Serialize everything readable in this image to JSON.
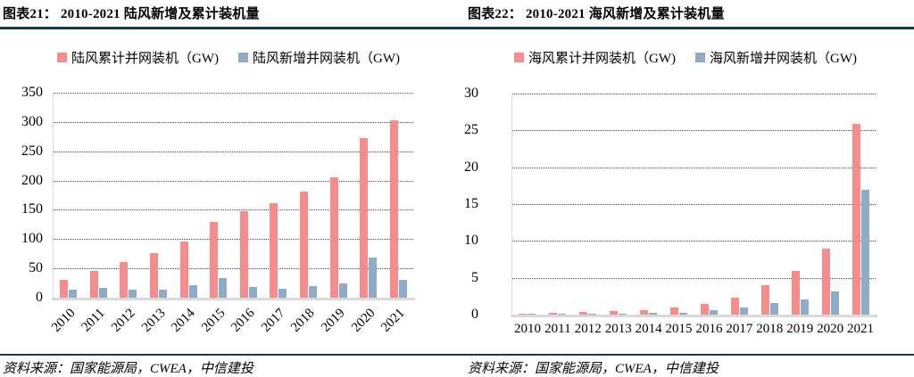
{
  "page": {
    "background": "#FFFFFF"
  },
  "rules": {
    "color": "#17375E"
  },
  "grid": {
    "line_color": "#4A4A4A",
    "baseline_color": "#D9D9D9"
  },
  "chart_data": [
    {
      "type": "bar",
      "title": "图表21： 2010-2021 陆风新增及累计装机量",
      "categories": [
        "2010",
        "2011",
        "2012",
        "2013",
        "2014",
        "2015",
        "2016",
        "2017",
        "2018",
        "2019",
        "2020",
        "2021"
      ],
      "series": [
        {
          "name": "陆风累计并网装机（GW)",
          "color": "#F68C8C",
          "values": [
            30,
            46,
            61,
            76,
            96,
            129,
            147,
            162,
            181,
            206,
            272,
            303
          ]
        },
        {
          "name": "陆风新增并网装机（GW)",
          "color": "#8DACC7",
          "values": [
            13,
            16,
            14,
            14,
            21,
            33,
            19,
            15,
            20,
            25,
            69,
            30
          ]
        }
      ],
      "ylim": [
        0,
        350
      ],
      "yticks": [
        0,
        50,
        100,
        150,
        200,
        250,
        300,
        350
      ],
      "xlabel": "",
      "ylabel": "",
      "x_tick_rotation": -45,
      "gridlines": "horizontal-dotted",
      "legend_position": "top",
      "source": "资料来源：国家能源局，CWEA，中信建投"
    },
    {
      "type": "bar",
      "title": "图表22： 2010-2021 海风新增及累计装机量",
      "categories": [
        "2010",
        "2011",
        "2012",
        "2013",
        "2014",
        "2015",
        "2016",
        "2017",
        "2018",
        "2019",
        "2020",
        "2021"
      ],
      "series": [
        {
          "name": "海风累计并网装机（GW)",
          "color": "#F68C8C",
          "values": [
            0.1,
            0.2,
            0.4,
            0.45,
            0.65,
            1.0,
            1.5,
            2.3,
            4.0,
            5.9,
            9.0,
            25.9
          ]
        },
        {
          "name": "海风新增并网装机（GW)",
          "color": "#8DACC7",
          "values": [
            0.05,
            0.1,
            0.15,
            0.05,
            0.2,
            0.3,
            0.6,
            1.0,
            1.6,
            2.0,
            3.1,
            16.9
          ]
        }
      ],
      "ylim": [
        0,
        30
      ],
      "yticks": [
        0,
        5,
        10,
        15,
        20,
        25,
        30
      ],
      "xlabel": "",
      "ylabel": "",
      "x_tick_rotation": 0,
      "gridlines": "horizontal-dotted",
      "legend_position": "top",
      "source": "资料来源：国家能源局，CWEA，中信建投"
    }
  ]
}
